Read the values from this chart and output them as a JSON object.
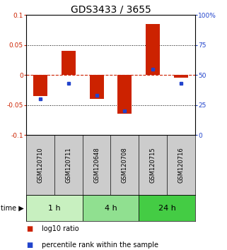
{
  "title": "GDS3433 / 3655",
  "samples": [
    "GSM120710",
    "GSM120711",
    "GSM120648",
    "GSM120708",
    "GSM120715",
    "GSM120716"
  ],
  "log10_ratio": [
    -0.035,
    0.04,
    -0.04,
    -0.065,
    0.085,
    -0.005
  ],
  "percentile_rank": [
    0.3,
    0.43,
    0.33,
    0.2,
    0.55,
    0.43
  ],
  "groups": [
    {
      "label": "1 h",
      "start": 0,
      "end": 2,
      "color": "#c8f0c0"
    },
    {
      "label": "4 h",
      "start": 2,
      "end": 4,
      "color": "#90e090"
    },
    {
      "label": "24 h",
      "start": 4,
      "end": 6,
      "color": "#44cc44"
    }
  ],
  "ylim": [
    -0.1,
    0.1
  ],
  "yticks_left": [
    -0.1,
    -0.05,
    0,
    0.05,
    0.1
  ],
  "ytick_labels_left": [
    "-0.1",
    "-0.05",
    "0",
    "0.05",
    "0.1"
  ],
  "yticks_right": [
    0,
    25,
    50,
    75,
    100
  ],
  "ytick_labels_right": [
    "0",
    "25",
    "50",
    "75",
    "100%"
  ],
  "bar_color": "#cc2200",
  "dot_color": "#2244cc",
  "zero_line_color": "#cc2200",
  "grid_color": "#000000",
  "sample_bg_color": "#cccccc",
  "background_color": "#ffffff",
  "title_fontsize": 10,
  "tick_fontsize": 6.5,
  "sample_fontsize": 6,
  "group_fontsize": 8,
  "legend_fontsize": 7
}
